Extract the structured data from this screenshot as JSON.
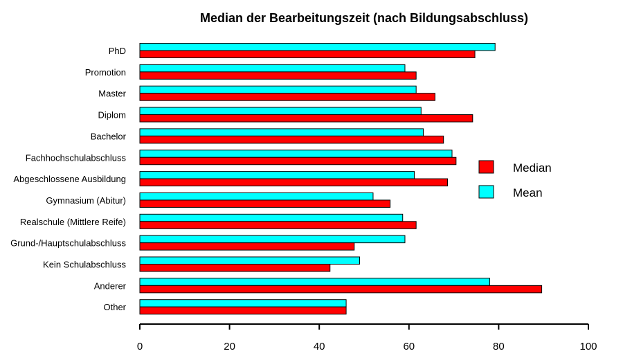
{
  "chart_data": {
    "type": "bar",
    "orientation": "horizontal",
    "title": "Median der Bearbeitungszeit (nach Bildungsabschluss)",
    "xlabel": "",
    "ylabel": "",
    "categories": [
      "PhD",
      "Promotion",
      "Master",
      "Diplom",
      "Bachelor",
      "Fachhochschulabschluss",
      "Abgeschlossene Ausbildung",
      "Gymnasium (Abitur)",
      "Realschule (Mittlere Reife)",
      "Grund-/Hauptschulabschluss",
      "Kein Schulabschluss",
      "Anderer",
      "Other"
    ],
    "series": [
      {
        "name": "Mean",
        "color": "#00ffff",
        "values": [
          79.2,
          59.1,
          61.6,
          62.7,
          63.2,
          69.6,
          61.2,
          52.0,
          58.6,
          59.1,
          49.0,
          78.0,
          46.0
        ]
      },
      {
        "name": "Median",
        "color": "#ff0000",
        "values": [
          74.7,
          61.6,
          65.8,
          74.2,
          67.7,
          70.5,
          68.6,
          55.8,
          61.6,
          47.8,
          42.4,
          89.6,
          46.0
        ]
      }
    ],
    "xlim": [
      0,
      100
    ],
    "xticks": [
      0,
      20,
      40,
      60,
      80,
      100
    ],
    "grid": false,
    "legend": {
      "placement": "right",
      "entries": [
        "Median",
        "Mean"
      ]
    }
  }
}
